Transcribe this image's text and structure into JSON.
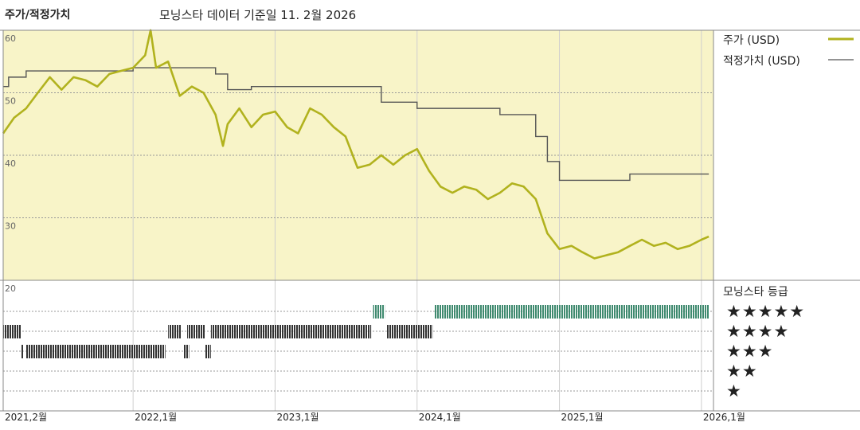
{
  "header": {
    "title": "주가/적정가치",
    "subtitle": "모닝스타 데이터 기준일 11. 2월 2026"
  },
  "legend": {
    "price_label": "주가 (USD)",
    "fair_label": "적정가치 (USD)",
    "rating_title": "모닝스타 등급",
    "rating_rows": [
      "★★★★★",
      "★★★★",
      "★★★",
      "★★",
      "★"
    ]
  },
  "colors": {
    "price": "#b1b21e",
    "fair": "#555555",
    "plot_bg": "#f8f4c8",
    "rating_5": "#3f8a6f",
    "rating_other": "#333333"
  },
  "chart_data": {
    "type": "line",
    "y_tick_labels": [
      "60",
      "50",
      "40",
      "30",
      "20"
    ],
    "ylim": [
      20,
      60
    ],
    "x_tick_labels": [
      "2021,2월",
      "2022,1월",
      "2023,1월",
      "2024,1월",
      "2025,1월",
      "2026,1월"
    ],
    "x_ticks": [
      "2021-02",
      "2022-01",
      "2023-01",
      "2024-01",
      "2025-01",
      "2026-01"
    ],
    "xlim": [
      "2021-02",
      "2026-02"
    ],
    "grid": true,
    "series": [
      {
        "name": "주가 (USD)",
        "points": [
          [
            "2021-02",
            43.5
          ],
          [
            "2021-03",
            46
          ],
          [
            "2021-04",
            47.5
          ],
          [
            "2021-05",
            50
          ],
          [
            "2021-06",
            52.5
          ],
          [
            "2021-07",
            50.5
          ],
          [
            "2021-08",
            52.5
          ],
          [
            "2021-09",
            52
          ],
          [
            "2021-10",
            51
          ],
          [
            "2021-11",
            53
          ],
          [
            "2021-12",
            53.5
          ],
          [
            "2022-01",
            54
          ],
          [
            "2022-02",
            56
          ],
          [
            "2022-02-15",
            60
          ],
          [
            "2022-03",
            54
          ],
          [
            "2022-04",
            55
          ],
          [
            "2022-05",
            49.5
          ],
          [
            "2022-06",
            51
          ],
          [
            "2022-07",
            50
          ],
          [
            "2022-08",
            46.5
          ],
          [
            "2022-08-20",
            41.5
          ],
          [
            "2022-09",
            45
          ],
          [
            "2022-10",
            47.5
          ],
          [
            "2022-11",
            44.5
          ],
          [
            "2022-12",
            46.5
          ],
          [
            "2023-01",
            47
          ],
          [
            "2023-02",
            44.5
          ],
          [
            "2023-03",
            43.5
          ],
          [
            "2023-04",
            47.5
          ],
          [
            "2023-05",
            46.5
          ],
          [
            "2023-06",
            44.5
          ],
          [
            "2023-07",
            43
          ],
          [
            "2023-08",
            38
          ],
          [
            "2023-09",
            38.5
          ],
          [
            "2023-10",
            40
          ],
          [
            "2023-11",
            38.5
          ],
          [
            "2023-12",
            40
          ],
          [
            "2024-01",
            41
          ],
          [
            "2024-02",
            37.5
          ],
          [
            "2024-03",
            35
          ],
          [
            "2024-04",
            34
          ],
          [
            "2024-05",
            35
          ],
          [
            "2024-06",
            34.5
          ],
          [
            "2024-07",
            33
          ],
          [
            "2024-08",
            34
          ],
          [
            "2024-09",
            35.5
          ],
          [
            "2024-10",
            35
          ],
          [
            "2024-11",
            33
          ],
          [
            "2024-12",
            27.5
          ],
          [
            "2025-01",
            25
          ],
          [
            "2025-02",
            25.5
          ],
          [
            "2025-03",
            24.5
          ],
          [
            "2025-04",
            23.5
          ],
          [
            "2025-05",
            24
          ],
          [
            "2025-06",
            24.5
          ],
          [
            "2025-07",
            25.5
          ],
          [
            "2025-08",
            26.5
          ],
          [
            "2025-09",
            25.5
          ],
          [
            "2025-10",
            26
          ],
          [
            "2025-11",
            25
          ],
          [
            "2025-12",
            25.5
          ],
          [
            "2026-01",
            26.5
          ],
          [
            "2026-01-20",
            27
          ]
        ]
      },
      {
        "name": "적정가치 (USD)",
        "steps": [
          [
            "2021-02",
            51
          ],
          [
            "2021-02-15",
            52.5
          ],
          [
            "2021-04",
            53.5
          ],
          [
            "2022-01",
            54
          ],
          [
            "2022-08",
            53
          ],
          [
            "2022-09",
            50.5
          ],
          [
            "2022-11",
            51
          ],
          [
            "2023-10",
            48.5
          ],
          [
            "2024-01",
            47.5
          ],
          [
            "2024-08",
            46.5
          ],
          [
            "2024-11",
            43
          ],
          [
            "2024-12",
            39
          ],
          [
            "2025-01",
            36
          ],
          [
            "2025-06",
            36
          ],
          [
            "2025-07",
            37
          ],
          [
            "2026-01-20",
            37
          ]
        ]
      }
    ],
    "ratings": [
      {
        "stars": 5,
        "periods": [
          [
            "2023-09-10",
            "2023-10-10"
          ],
          [
            "2024-02-15",
            "2026-01-20"
          ]
        ]
      },
      {
        "stars": 4,
        "periods": [
          [
            "2021-02",
            "2021-03-20"
          ],
          [
            "2022-04",
            "2022-05-05"
          ],
          [
            "2022-05-20",
            "2022-07-05"
          ],
          [
            "2022-07-20",
            "2023-09-05"
          ],
          [
            "2023-10-15",
            "2024-02-10"
          ]
        ]
      },
      {
        "stars": 3,
        "periods": [
          [
            "2021-03-20",
            "2021-03-25"
          ],
          [
            "2021-04-01",
            "2022-03-25"
          ],
          [
            "2022-05-10",
            "2022-05-25"
          ],
          [
            "2022-07-05",
            "2022-07-20"
          ]
        ]
      },
      {
        "stars": 2,
        "periods": []
      },
      {
        "stars": 1,
        "periods": []
      }
    ]
  }
}
